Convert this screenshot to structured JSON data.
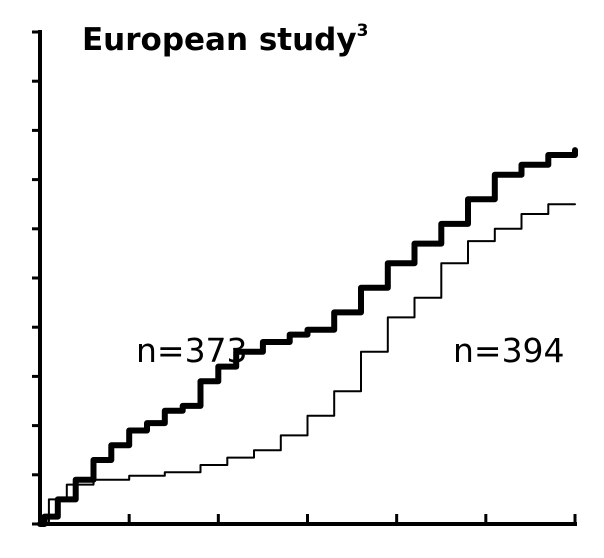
{
  "chart_data": {
    "type": "line",
    "title": "European study",
    "title_superscript": "3",
    "xlim": [
      0,
      6
    ],
    "ylim": [
      0,
      10
    ],
    "x_ticks": [
      0,
      1,
      2,
      3,
      4,
      5,
      6
    ],
    "y_ticks": [
      0,
      1,
      2,
      3,
      4,
      5,
      6,
      7,
      8,
      9,
      10
    ],
    "x_tick_labels": [],
    "y_tick_labels": [],
    "grid": false,
    "legend": "none",
    "series": [
      {
        "label": "n=373",
        "color": "#000000",
        "line_weight": "heavy",
        "points": [
          [
            0.0,
            0.0
          ],
          [
            0.05,
            0.15
          ],
          [
            0.2,
            0.5
          ],
          [
            0.4,
            0.9
          ],
          [
            0.6,
            1.3
          ],
          [
            0.8,
            1.6
          ],
          [
            1.0,
            1.9
          ],
          [
            1.2,
            2.05
          ],
          [
            1.4,
            2.3
          ],
          [
            1.6,
            2.4
          ],
          [
            1.8,
            2.9
          ],
          [
            2.0,
            3.2
          ],
          [
            2.2,
            3.5
          ],
          [
            2.5,
            3.7
          ],
          [
            2.8,
            3.85
          ],
          [
            3.0,
            3.95
          ],
          [
            3.3,
            4.3
          ],
          [
            3.6,
            4.8
          ],
          [
            3.9,
            5.3
          ],
          [
            4.2,
            5.7
          ],
          [
            4.5,
            6.1
          ],
          [
            4.8,
            6.6
          ],
          [
            5.1,
            7.1
          ],
          [
            5.4,
            7.3
          ],
          [
            5.7,
            7.5
          ],
          [
            6.0,
            7.6
          ]
        ]
      },
      {
        "label": "n=394",
        "color": "#000000",
        "line_weight": "thin",
        "points": [
          [
            0.0,
            0.0
          ],
          [
            0.1,
            0.5
          ],
          [
            0.3,
            0.8
          ],
          [
            0.6,
            0.9
          ],
          [
            1.0,
            0.98
          ],
          [
            1.4,
            1.05
          ],
          [
            1.8,
            1.2
          ],
          [
            2.1,
            1.35
          ],
          [
            2.4,
            1.5
          ],
          [
            2.7,
            1.8
          ],
          [
            3.0,
            2.2
          ],
          [
            3.3,
            2.7
          ],
          [
            3.6,
            3.5
          ],
          [
            3.9,
            4.2
          ],
          [
            4.2,
            4.6
          ],
          [
            4.5,
            5.3
          ],
          [
            4.8,
            5.75
          ],
          [
            5.1,
            6.0
          ],
          [
            5.4,
            6.3
          ],
          [
            5.7,
            6.5
          ],
          [
            6.0,
            6.5
          ]
        ]
      }
    ],
    "annotations": [
      {
        "text": "n=373",
        "series": 0
      },
      {
        "text": "n=394",
        "series": 1
      }
    ]
  }
}
